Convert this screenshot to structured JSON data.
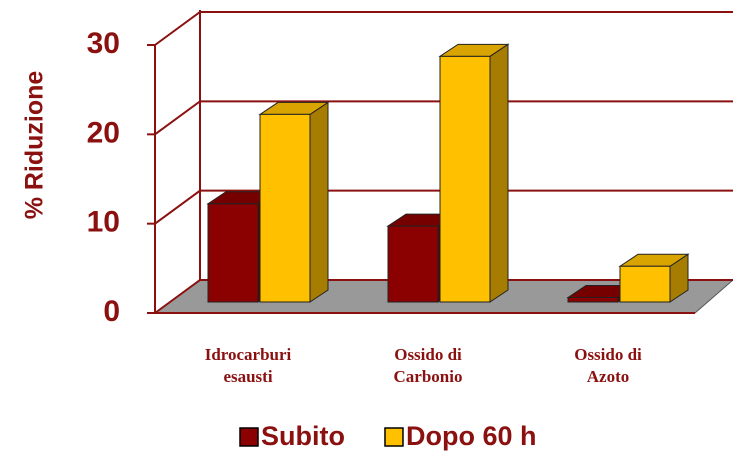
{
  "chart_data": {
    "type": "bar3d",
    "y_label": "% Riduzione",
    "categories": [
      "Idrocarburi\nesausti",
      "Ossido di\nCarbonio",
      "Ossido di\nAzoto"
    ],
    "series": [
      {
        "name": "Subito",
        "color": "#8b0000",
        "values": [
          11,
          8.5,
          0.5
        ]
      },
      {
        "name": "Dopo 60 h",
        "color": "#ffc000",
        "values": [
          21,
          27.5,
          4
        ]
      }
    ],
    "ylim": [
      0,
      30
    ],
    "yticks": [
      0,
      10,
      20,
      30
    ],
    "grid": true,
    "legend": "bottom"
  }
}
